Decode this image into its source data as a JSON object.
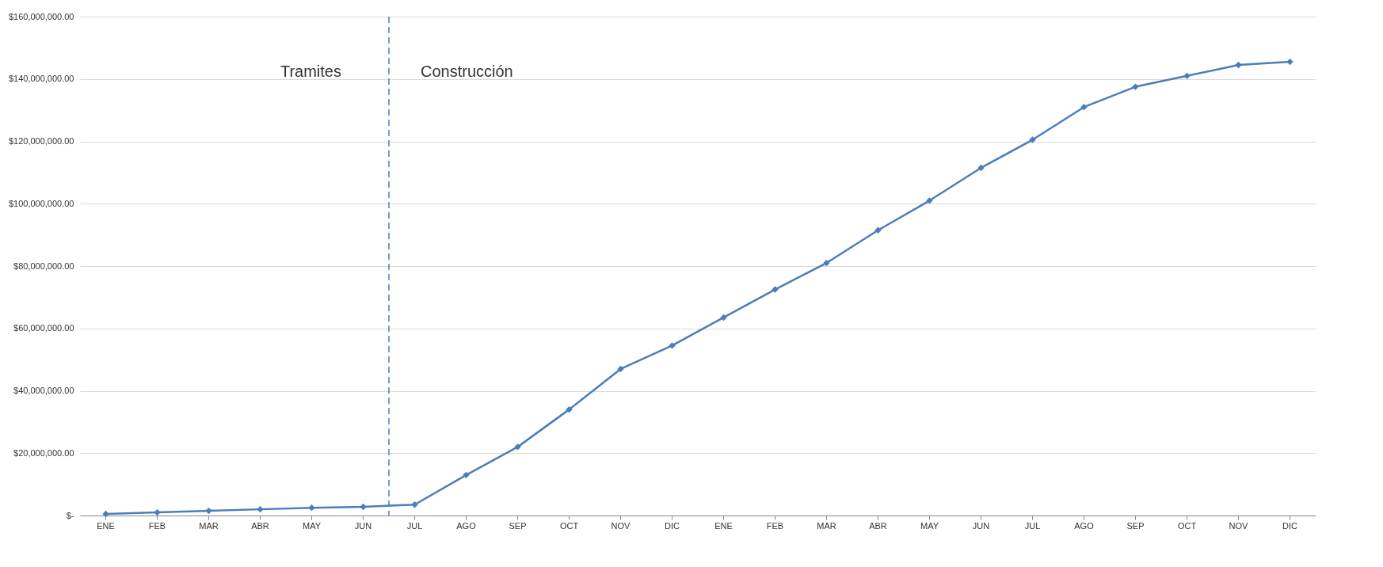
{
  "chart_data": {
    "type": "line",
    "categories": [
      "ENE",
      "FEB",
      "MAR",
      "ABR",
      "MAY",
      "JUN",
      "JUL",
      "AGO",
      "SEP",
      "OCT",
      "NOV",
      "DIC",
      "ENE",
      "FEB",
      "MAR",
      "ABR",
      "MAY",
      "JUN",
      "JUL",
      "AGO",
      "SEP",
      "OCT",
      "NOV",
      "DIC"
    ],
    "series": [
      {
        "color": "#4a7ebb",
        "values": [
          500000,
          1000000,
          1500000,
          2000000,
          2500000,
          2800000,
          3500000,
          13000000,
          22000000,
          34000000,
          47000000,
          54500000,
          63500000,
          72500000,
          81000000,
          91500000,
          101000000,
          111500000,
          120500000,
          131000000,
          137500000,
          141000000,
          144500000,
          145500000
        ]
      }
    ],
    "ylim": [
      0,
      160000000
    ],
    "yticks": [
      {
        "value": 0,
        "label": "$-"
      },
      {
        "value": 20000000,
        "label": "$20,000,000.00"
      },
      {
        "value": 40000000,
        "label": "$40,000,000.00"
      },
      {
        "value": 60000000,
        "label": "$60,000,000.00"
      },
      {
        "value": 80000000,
        "label": "$80,000,000.00"
      },
      {
        "value": 100000000,
        "label": "$100,000,000.00"
      },
      {
        "value": 120000000,
        "label": "$120,000,000.00"
      },
      {
        "value": 140000000,
        "label": "$140,000,000.00"
      },
      {
        "value": 160000000,
        "label": "$160,000,000.00"
      }
    ],
    "ref_lines": [
      {
        "axis": "x",
        "value": "JUN",
        "color": "#4a7ebb",
        "line_style": "dashed"
      }
    ],
    "annotations": [
      "Tramites",
      "Construcción"
    ],
    "grid": "y",
    "marker": "diamond",
    "line_style": "solid"
  }
}
